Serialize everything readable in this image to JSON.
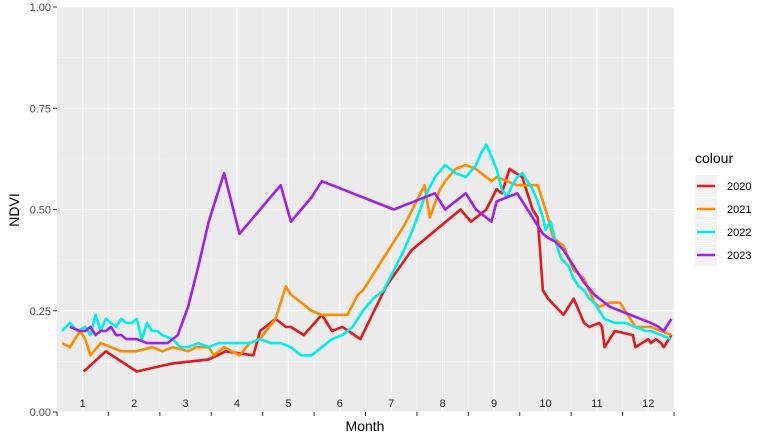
{
  "chart_data": {
    "type": "line",
    "xlabel": "Month",
    "ylabel": "NDVI",
    "ylim": [
      0,
      1
    ],
    "xlim": [
      0.5,
      12.5
    ],
    "y_ticks": [
      "0.00",
      "0.25",
      "0.50",
      "0.75",
      "1.00"
    ],
    "months": [
      "1",
      "2",
      "3",
      "4",
      "5",
      "6",
      "7",
      "8",
      "9",
      "10",
      "11",
      "12"
    ],
    "grid": true,
    "legend_title": "colour",
    "legend_position": "right",
    "series": [
      {
        "name": "2020",
        "color": "#e31a1c",
        "x": [
          1.02,
          1.45,
          2.05,
          2.75,
          3.45,
          3.78,
          4.32,
          4.45,
          4.75,
          4.85,
          4.95,
          5.05,
          5.3,
          5.65,
          5.85,
          6.05,
          6.4,
          6.9,
          7.4,
          8.35,
          8.55,
          8.85,
          9.05,
          9.15,
          9.3,
          9.55,
          9.75,
          9.85,
          9.95,
          10.05,
          10.35,
          10.55,
          10.75,
          10.85,
          11.05,
          11.1,
          11.15,
          11.35,
          11.7,
          11.75,
          12.0,
          12.05,
          12.15,
          12.25,
          12.3,
          12.4,
          12.45
        ],
        "y": [
          0.1,
          0.15,
          0.1,
          0.12,
          0.13,
          0.15,
          0.14,
          0.2,
          0.23,
          0.22,
          0.21,
          0.21,
          0.19,
          0.24,
          0.2,
          0.21,
          0.18,
          0.31,
          0.4,
          0.5,
          0.47,
          0.5,
          0.55,
          0.54,
          0.6,
          0.58,
          0.5,
          0.48,
          0.3,
          0.28,
          0.24,
          0.28,
          0.22,
          0.21,
          0.22,
          0.21,
          0.16,
          0.2,
          0.19,
          0.16,
          0.18,
          0.17,
          0.18,
          0.17,
          0.16,
          0.18,
          0.19
        ]
      },
      {
        "name": "2021",
        "color": "#ff8c00",
        "x": [
          0.6,
          0.75,
          0.95,
          1.05,
          1.15,
          1.35,
          1.55,
          1.75,
          2.05,
          2.35,
          2.55,
          2.75,
          3.05,
          3.2,
          3.45,
          3.55,
          3.75,
          4.05,
          4.25,
          4.45,
          4.75,
          4.95,
          5.05,
          5.25,
          5.45,
          5.65,
          6.15,
          6.35,
          6.45,
          7.25,
          7.65,
          7.75,
          7.95,
          8.05,
          8.25,
          8.45,
          8.65,
          8.95,
          9.05,
          9.25,
          9.45,
          9.75,
          9.85,
          10.05,
          10.15,
          10.35,
          10.55,
          10.75,
          10.95,
          11.05,
          11.25,
          11.45,
          11.55,
          11.75,
          12.05,
          12.25,
          12.45
        ],
        "y": [
          0.17,
          0.16,
          0.2,
          0.18,
          0.14,
          0.17,
          0.16,
          0.15,
          0.15,
          0.16,
          0.15,
          0.16,
          0.15,
          0.16,
          0.16,
          0.14,
          0.16,
          0.14,
          0.17,
          0.18,
          0.23,
          0.31,
          0.29,
          0.27,
          0.25,
          0.24,
          0.24,
          0.29,
          0.3,
          0.46,
          0.56,
          0.48,
          0.55,
          0.57,
          0.6,
          0.61,
          0.6,
          0.57,
          0.58,
          0.57,
          0.56,
          0.56,
          0.56,
          0.48,
          0.43,
          0.41,
          0.35,
          0.33,
          0.27,
          0.26,
          0.27,
          0.27,
          0.25,
          0.21,
          0.21,
          0.2,
          0.19
        ]
      },
      {
        "name": "2022",
        "color": "#00eeee",
        "x": [
          0.6,
          0.75,
          0.9,
          1.05,
          1.15,
          1.25,
          1.35,
          1.45,
          1.55,
          1.65,
          1.75,
          1.85,
          1.95,
          2.05,
          2.15,
          2.25,
          2.35,
          2.45,
          2.55,
          2.75,
          2.9,
          3.05,
          3.25,
          3.45,
          3.65,
          3.85,
          4.05,
          4.25,
          4.45,
          4.65,
          4.85,
          5.05,
          5.25,
          5.45,
          5.55,
          5.65,
          5.85,
          6.05,
          6.25,
          6.45,
          6.65,
          6.85,
          7.05,
          7.25,
          7.45,
          7.65,
          7.85,
          8.05,
          8.25,
          8.45,
          8.65,
          8.75,
          8.85,
          8.95,
          9.05,
          9.15,
          9.25,
          9.35,
          9.45,
          9.55,
          9.65,
          9.75,
          9.85,
          9.95,
          10.0,
          10.1,
          10.2,
          10.3,
          10.45,
          10.55,
          10.65,
          10.75,
          10.85,
          10.95,
          11.05,
          11.15,
          11.35,
          11.55,
          11.75,
          11.95,
          12.05,
          12.25,
          12.45
        ],
        "y": [
          0.2,
          0.22,
          0.2,
          0.21,
          0.19,
          0.24,
          0.2,
          0.23,
          0.22,
          0.21,
          0.23,
          0.22,
          0.22,
          0.23,
          0.18,
          0.22,
          0.2,
          0.2,
          0.19,
          0.18,
          0.16,
          0.16,
          0.17,
          0.16,
          0.17,
          0.17,
          0.17,
          0.17,
          0.18,
          0.17,
          0.17,
          0.16,
          0.14,
          0.14,
          0.15,
          0.16,
          0.18,
          0.19,
          0.21,
          0.25,
          0.28,
          0.3,
          0.35,
          0.4,
          0.46,
          0.53,
          0.58,
          0.61,
          0.59,
          0.58,
          0.61,
          0.64,
          0.66,
          0.63,
          0.6,
          0.55,
          0.53,
          0.56,
          0.58,
          0.59,
          0.57,
          0.55,
          0.52,
          0.48,
          0.45,
          0.47,
          0.42,
          0.38,
          0.36,
          0.33,
          0.31,
          0.3,
          0.28,
          0.27,
          0.25,
          0.23,
          0.22,
          0.22,
          0.21,
          0.2,
          0.2,
          0.19,
          0.18
        ]
      },
      {
        "name": "2023",
        "color": "#a020f0",
        "x": [
          0.75,
          0.95,
          1.05,
          1.15,
          1.25,
          1.35,
          1.45,
          1.55,
          1.65,
          1.75,
          1.85,
          1.95,
          2.05,
          2.25,
          2.45,
          2.65,
          2.85,
          3.05,
          3.25,
          3.45,
          3.6,
          3.75,
          4.05,
          4.25,
          4.45,
          4.65,
          4.85,
          5.05,
          5.25,
          5.45,
          5.65,
          5.85,
          6.05,
          6.25,
          6.45,
          6.65,
          6.85,
          7.05,
          7.25,
          7.45,
          7.65,
          7.85,
          8.05,
          8.25,
          8.45,
          8.65,
          8.85,
          8.95,
          9.05,
          9.25,
          9.45,
          9.65,
          9.75,
          9.85,
          9.95,
          10.05,
          10.2,
          10.35,
          10.55,
          10.75,
          10.95,
          11.05,
          11.25,
          11.45,
          11.65,
          11.85,
          12.05,
          12.2,
          12.3,
          12.45
        ],
        "y": [
          0.21,
          0.2,
          0.2,
          0.21,
          0.19,
          0.2,
          0.2,
          0.21,
          0.19,
          0.19,
          0.18,
          0.18,
          0.18,
          0.17,
          0.17,
          0.17,
          0.19,
          0.26,
          0.36,
          0.47,
          0.53,
          0.59,
          0.44,
          0.47,
          0.5,
          0.53,
          0.56,
          0.47,
          0.5,
          0.53,
          0.57,
          0.56,
          0.55,
          0.54,
          0.53,
          0.52,
          0.51,
          0.5,
          0.51,
          0.52,
          0.53,
          0.54,
          0.5,
          0.52,
          0.54,
          0.5,
          0.48,
          0.47,
          0.52,
          0.53,
          0.54,
          0.5,
          0.48,
          0.46,
          0.44,
          0.43,
          0.42,
          0.4,
          0.36,
          0.32,
          0.29,
          0.28,
          0.26,
          0.25,
          0.24,
          0.23,
          0.22,
          0.21,
          0.2,
          0.23
        ]
      }
    ]
  }
}
